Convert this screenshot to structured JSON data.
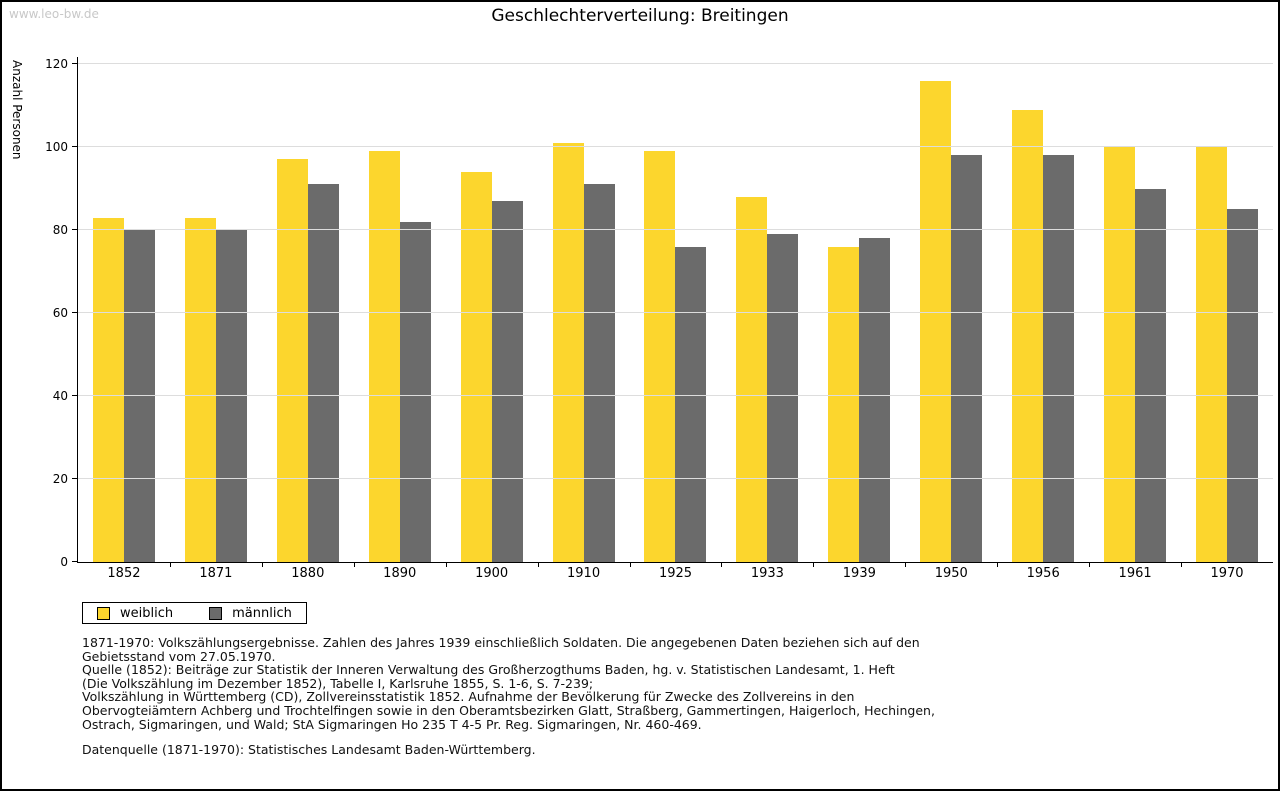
{
  "watermark": "www.leo-bw.de",
  "chart_data": {
    "type": "bar",
    "title": "Geschlechterverteilung: Breitingen",
    "ylabel": "Anzahl Personen",
    "xlabel": "",
    "categories": [
      "1852",
      "1871",
      "1880",
      "1890",
      "1900",
      "1910",
      "1925",
      "1933",
      "1939",
      "1950",
      "1956",
      "1961",
      "1970"
    ],
    "series": [
      {
        "name": "weiblich",
        "color": "#FCD62D",
        "values": [
          83,
          83,
          97,
          99,
          94,
          101,
          99,
          88,
          76,
          116,
          109,
          100,
          100
        ]
      },
      {
        "name": "männlich",
        "color": "#6B6B6B",
        "values": [
          80,
          80,
          91,
          82,
          87,
          91,
          76,
          79,
          78,
          98,
          98,
          90,
          85
        ]
      }
    ],
    "ylim": [
      0,
      120
    ],
    "yticks": [
      0,
      20,
      40,
      60,
      80,
      100,
      120
    ],
    "grid": true,
    "gridline_color": "#DDDDDD",
    "axis_color": "#000000",
    "legend_position": "bottom-left"
  },
  "footnotes": {
    "lines": [
      "1871-1970: Volkszählungsergebnisse. Zahlen des Jahres 1939 einschließlich Soldaten. Die angegebenen Daten beziehen sich auf den",
      "Gebietsstand vom 27.05.1970.",
      "Quelle (1852): Beiträge zur Statistik der Inneren Verwaltung des Großherzogthums Baden, hg. v. Statistischen Landesamt, 1. Heft",
      "(Die Volkszählung im Dezember 1852), Tabelle I, Karlsruhe 1855, S. 1-6, S. 7-239;",
      "Volkszählung in Württemberg (CD), Zollvereinsstatistik 1852. Aufnahme der Bevölkerung für Zwecke des Zollvereins in den",
      "Obervogteiämtern Achberg und Trochtelfingen sowie in den Oberamtsbezirken Glatt, Straßberg, Gammertingen, Haigerloch, Hechingen,",
      "Ostrach, Sigmaringen, und Wald; StA Sigmaringen Ho 235 T 4-5 Pr. Reg. Sigmaringen, Nr. 460-469."
    ],
    "datasource": "Datenquelle (1871-1970): Statistisches Landesamt Baden-Württemberg."
  },
  "colors": {
    "watermark": "#C8C8C8",
    "background": "#FFFFFF",
    "border": "#000000"
  }
}
